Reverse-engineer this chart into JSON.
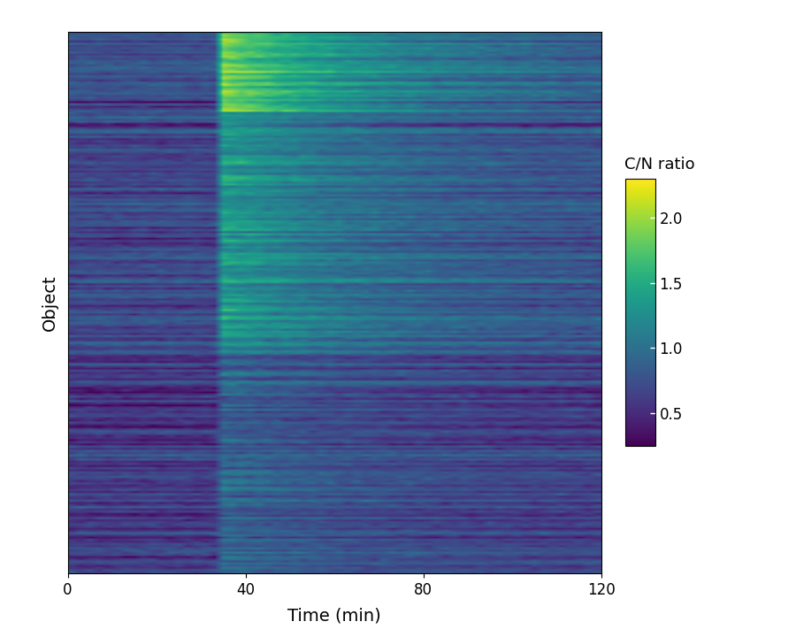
{
  "title": "",
  "xlabel": "Time (min)",
  "ylabel": "Object",
  "colorbar_label": "C/N ratio",
  "colorbar_ticks": [
    0.5,
    1.0,
    1.5,
    2.0
  ],
  "vmin": 0.25,
  "vmax": 2.3,
  "time_min": 0,
  "time_max": 120,
  "n_objects": 250,
  "n_timepoints": 60,
  "stimulation_time": 33,
  "xticks": [
    0,
    40,
    80,
    120
  ],
  "cmap": "viridis",
  "seed": 7,
  "background_color": "#ffffff",
  "label_fontsize": 14,
  "tick_fontsize": 12,
  "colorbar_label_fontsize": 13,
  "colorbar_tick_fontsize": 12
}
